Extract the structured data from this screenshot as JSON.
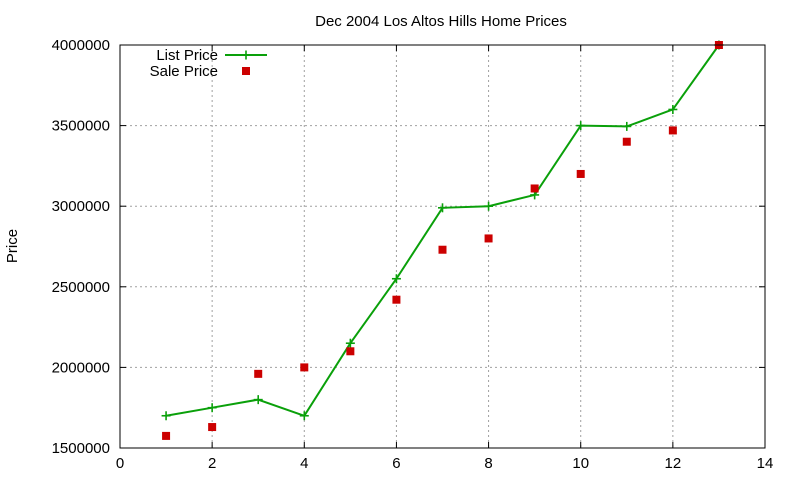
{
  "chart_data": {
    "type": "line",
    "title": "Dec 2004 Los Altos Hills Home Prices",
    "xlabel": "",
    "ylabel": "Price",
    "xlim": [
      0,
      14
    ],
    "ylim": [
      1500000,
      4000000
    ],
    "x_ticks": [
      0,
      2,
      4,
      6,
      8,
      10,
      12,
      14
    ],
    "y_ticks": [
      1500000,
      2000000,
      2500000,
      3000000,
      3500000,
      4000000
    ],
    "grid": true,
    "legend_position": "top-left",
    "series": [
      {
        "name": "List Price",
        "style": "line-points",
        "marker": "plus",
        "color": "#0aa00a",
        "points": [
          [
            1,
            1700000
          ],
          [
            2,
            1750000
          ],
          [
            3,
            1800000
          ],
          [
            4,
            1700000
          ],
          [
            5,
            2150000
          ],
          [
            6,
            2550000
          ],
          [
            7,
            2990000
          ],
          [
            8,
            3000000
          ],
          [
            9,
            3070000
          ],
          [
            10,
            3500000
          ],
          [
            11,
            3495000
          ],
          [
            12,
            3600000
          ],
          [
            13,
            4000000
          ]
        ]
      },
      {
        "name": "Sale Price",
        "style": "points",
        "marker": "square",
        "color": "#cc0000",
        "points": [
          [
            1,
            1575000
          ],
          [
            2,
            1630000
          ],
          [
            3,
            1960000
          ],
          [
            4,
            2000000
          ],
          [
            5,
            2100000
          ],
          [
            6,
            2420000
          ],
          [
            7,
            2730000
          ],
          [
            8,
            2800000
          ],
          [
            9,
            3110000
          ],
          [
            10,
            3200000
          ],
          [
            11,
            3400000
          ],
          [
            12,
            3470000
          ],
          [
            13,
            4000000
          ]
        ]
      }
    ]
  }
}
